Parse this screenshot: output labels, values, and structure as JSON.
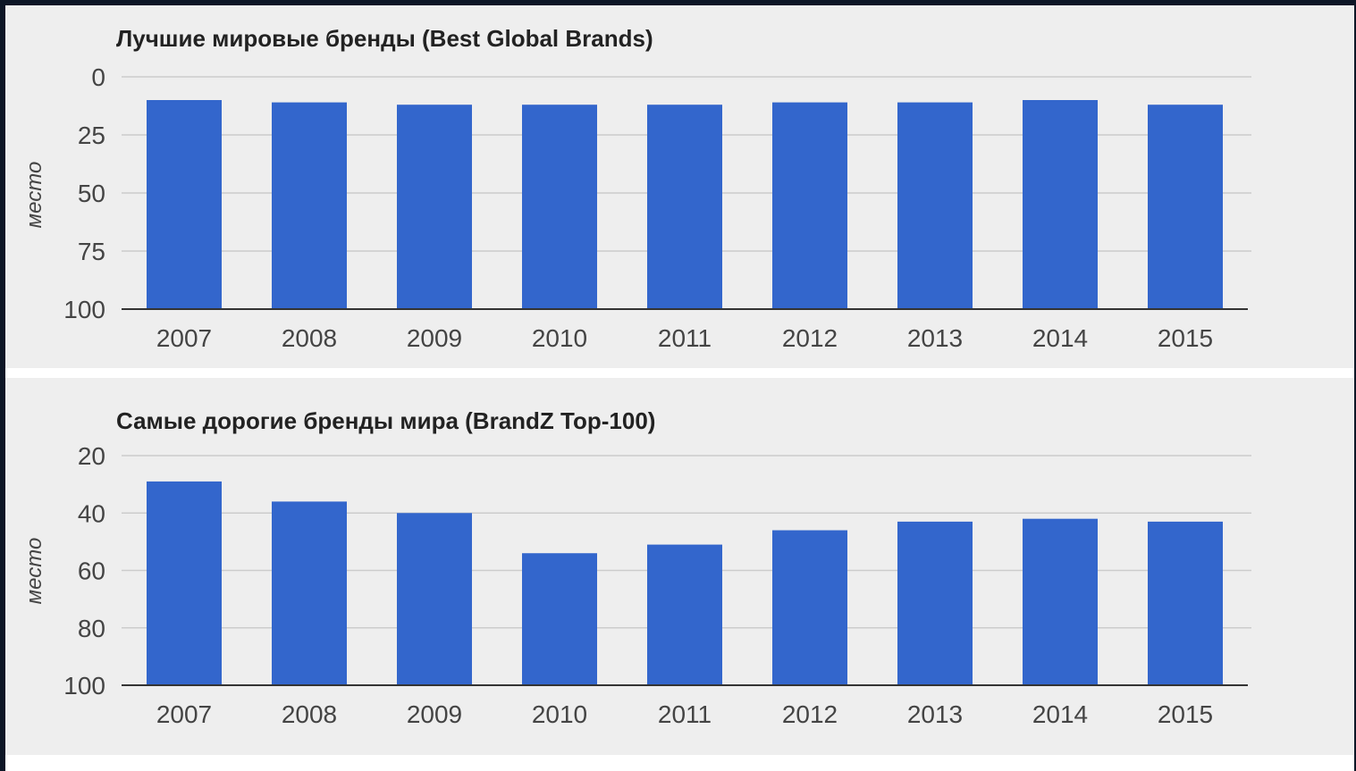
{
  "colors": {
    "bar": "#3366cc",
    "grid": "#cccccc",
    "axis": "#333333",
    "text": "#444444",
    "panel": "#eeeeee"
  },
  "chart_data": [
    {
      "type": "bar",
      "title": "Лучшие мировые бренды (Best Global Brands)",
      "xlabel": "",
      "ylabel": "место",
      "inverted_y": true,
      "ylim": [
        0,
        100
      ],
      "yticks": [
        0,
        25,
        50,
        75,
        100
      ],
      "grid": true,
      "categories": [
        "2007",
        "2008",
        "2009",
        "2010",
        "2011",
        "2012",
        "2013",
        "2014",
        "2015"
      ],
      "series": [
        {
          "values": [
            10,
            11,
            12,
            12,
            12,
            11,
            11,
            10,
            12
          ]
        }
      ]
    },
    {
      "type": "bar",
      "title": "Самые дорогие бренды мира (BrandZ Top-100)",
      "xlabel": "",
      "ylabel": "место",
      "inverted_y": true,
      "ylim": [
        20,
        100
      ],
      "yticks": [
        20,
        40,
        60,
        80,
        100
      ],
      "grid": true,
      "categories": [
        "2007",
        "2008",
        "2009",
        "2010",
        "2011",
        "2012",
        "2013",
        "2014",
        "2015"
      ],
      "series": [
        {
          "values": [
            29,
            36,
            40,
            54,
            51,
            46,
            43,
            42,
            43
          ]
        }
      ]
    }
  ]
}
